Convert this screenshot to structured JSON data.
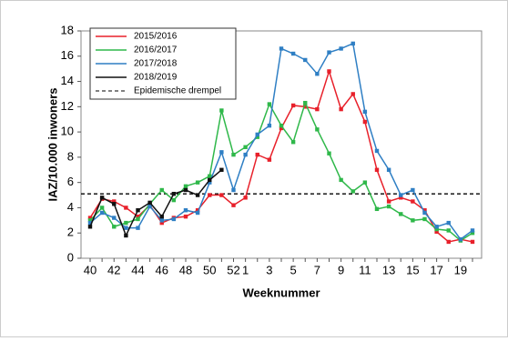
{
  "chart_data": {
    "type": "line",
    "y_label": "IAZ/10.000 inwoners",
    "x_label": "Weeknummer",
    "categories": [
      "40",
      null,
      "42",
      null,
      "44",
      null,
      "46",
      null,
      "48",
      null,
      "50",
      null,
      "52",
      "1",
      null,
      "3",
      null,
      "5",
      null,
      "7",
      null,
      "9",
      null,
      "11",
      null,
      "13",
      null,
      "15",
      null,
      "17",
      null,
      "19",
      null
    ],
    "ylim": [
      0,
      18
    ],
    "yticks": [
      0,
      2,
      4,
      6,
      8,
      10,
      12,
      14,
      16,
      18
    ],
    "series": [
      {
        "name": "2015/2016",
        "color": "#e8202a",
        "values": [
          3.2,
          4.7,
          4.5,
          4.0,
          3.3,
          4.2,
          2.8,
          3.2,
          3.3,
          3.8,
          5.0,
          5.0,
          4.2,
          4.8,
          8.2,
          7.8,
          10.3,
          12.1,
          12.0,
          11.8,
          14.8,
          11.8,
          13.0,
          10.8,
          7.0,
          4.5,
          4.8,
          4.5,
          3.8,
          2.1,
          1.3,
          1.5,
          1.3
        ]
      },
      {
        "name": "2016/2017",
        "color": "#2fb84a",
        "values": [
          3.0,
          4.0,
          2.5,
          2.8,
          3.1,
          4.3,
          5.4,
          4.6,
          5.7,
          6.0,
          6.5,
          11.7,
          8.2,
          8.8,
          9.6,
          12.2,
          10.5,
          9.2,
          12.3,
          10.2,
          8.3,
          6.2,
          5.3,
          6.0,
          3.9,
          4.1,
          3.5,
          3.0,
          3.1,
          2.3,
          2.2,
          1.4,
          2.0
        ]
      },
      {
        "name": "2017/2018",
        "color": "#2f7fc4",
        "values": [
          2.8,
          3.6,
          3.2,
          2.4,
          2.4,
          4.1,
          3.0,
          3.1,
          3.8,
          3.6,
          6.0,
          8.4,
          5.4,
          8.2,
          9.8,
          10.5,
          16.6,
          16.2,
          15.7,
          14.6,
          16.3,
          16.6,
          17.0,
          11.6,
          8.5,
          7.0,
          5.0,
          5.4,
          3.6,
          2.5,
          2.8,
          1.5,
          2.2
        ]
      },
      {
        "name": "2018/2019",
        "color": "#111111",
        "values": [
          2.5,
          4.8,
          4.3,
          1.8,
          3.8,
          4.4,
          3.3,
          5.1,
          5.4,
          5.0,
          6.2,
          7.0,
          null,
          null,
          null,
          null,
          null,
          null,
          null,
          null,
          null,
          null,
          null,
          null,
          null,
          null,
          null,
          null,
          null,
          null,
          null,
          null,
          null
        ]
      }
    ],
    "reference_line": {
      "name": "Epidemische drempel",
      "value": 5.1,
      "color": "#000000"
    }
  }
}
